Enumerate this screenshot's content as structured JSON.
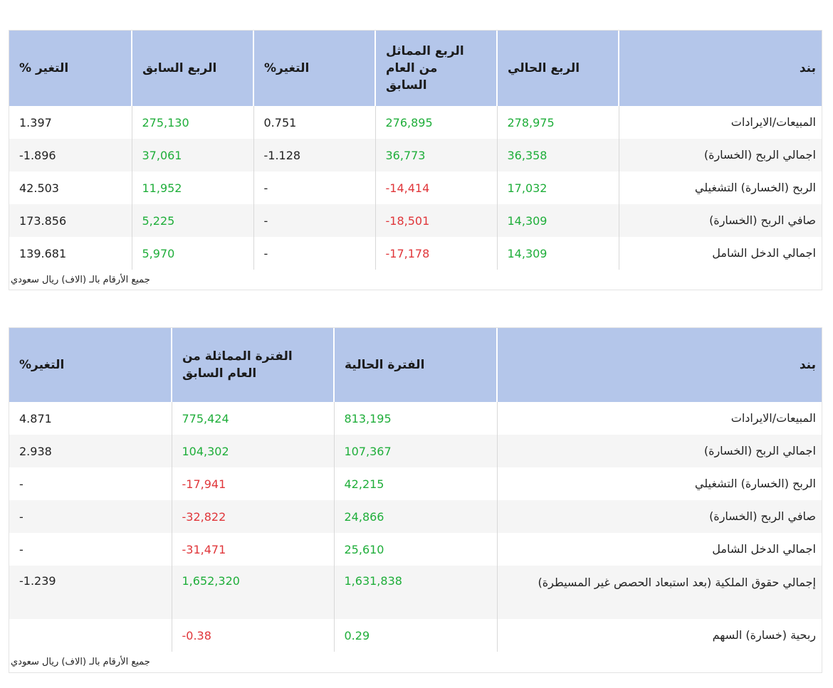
{
  "quarter_table": {
    "headers": {
      "item": "بند",
      "current": "الربع الحالي",
      "same_last_year": "الربع المماثل من العام السابق",
      "change_yoy": "التغير%",
      "previous": "الربع السابق",
      "change_qoq": "التغير %"
    },
    "rows": [
      {
        "item": "المبيعات/الايرادات",
        "current": "278,975",
        "same_last_year": "276,895",
        "change_yoy": "0.751",
        "previous": "275,130",
        "change_qoq": "1.397"
      },
      {
        "item": "اجمالي الربح (الخسارة)",
        "current": "36,358",
        "same_last_year": "36,773",
        "change_yoy": "1.128-",
        "previous": "37,061",
        "change_qoq": "1.896-"
      },
      {
        "item": "الربح (الخسارة) التشغيلي",
        "current": "17,032",
        "same_last_year": "14,414-",
        "change_yoy": "-",
        "previous": "11,952",
        "change_qoq": "42.503"
      },
      {
        "item": "صافي الربح (الخسارة)",
        "current": "14,309",
        "same_last_year": "18,501-",
        "change_yoy": "-",
        "previous": "5,225",
        "change_qoq": "173.856"
      },
      {
        "item": "اجمالي الدخل الشامل",
        "current": "14,309",
        "same_last_year": "17,178-",
        "change_yoy": "-",
        "previous": "5,970",
        "change_qoq": "139.681"
      }
    ],
    "note": "جميع الأرقام بالـ (الاف) ريال سعودي"
  },
  "period_table": {
    "headers": {
      "item": "بند",
      "current": "الفترة الحالية",
      "same_last_year": "الفترة المماثلة من العام السابق",
      "change": "التغير%"
    },
    "rows": [
      {
        "item": "المبيعات/الايرادات",
        "current": "813,195",
        "same_last_year": "775,424",
        "change": "4.871"
      },
      {
        "item": "اجمالي الربح (الخسارة)",
        "current": "107,367",
        "same_last_year": "104,302",
        "change": "2.938"
      },
      {
        "item": "الربح (الخسارة) التشغيلي",
        "current": "42,215",
        "same_last_year": "17,941-",
        "change": "-"
      },
      {
        "item": "صافي الربح (الخسارة)",
        "current": "24,866",
        "same_last_year": "32,822-",
        "change": "-"
      },
      {
        "item": "اجمالي الدخل الشامل",
        "current": "25,610",
        "same_last_year": "31,471-",
        "change": "-"
      },
      {
        "item": "إجمالي حقوق الملكية (بعد استبعاد الحصص غير المسيطرة)",
        "current": "1,631,838",
        "same_last_year": "1,652,320",
        "change": "1.239-"
      },
      {
        "item": "ربحية (خسارة) السهم",
        "current": "0.29",
        "same_last_year": "0.38-",
        "change": ""
      }
    ],
    "note": "جميع الأرقام بالـ (الاف) ريال سعودي"
  },
  "colors": {
    "header_bg": "#b4c6ea",
    "positive": "#1fae3a",
    "negative": "#e0363a",
    "row_alt": "#f5f5f5"
  }
}
